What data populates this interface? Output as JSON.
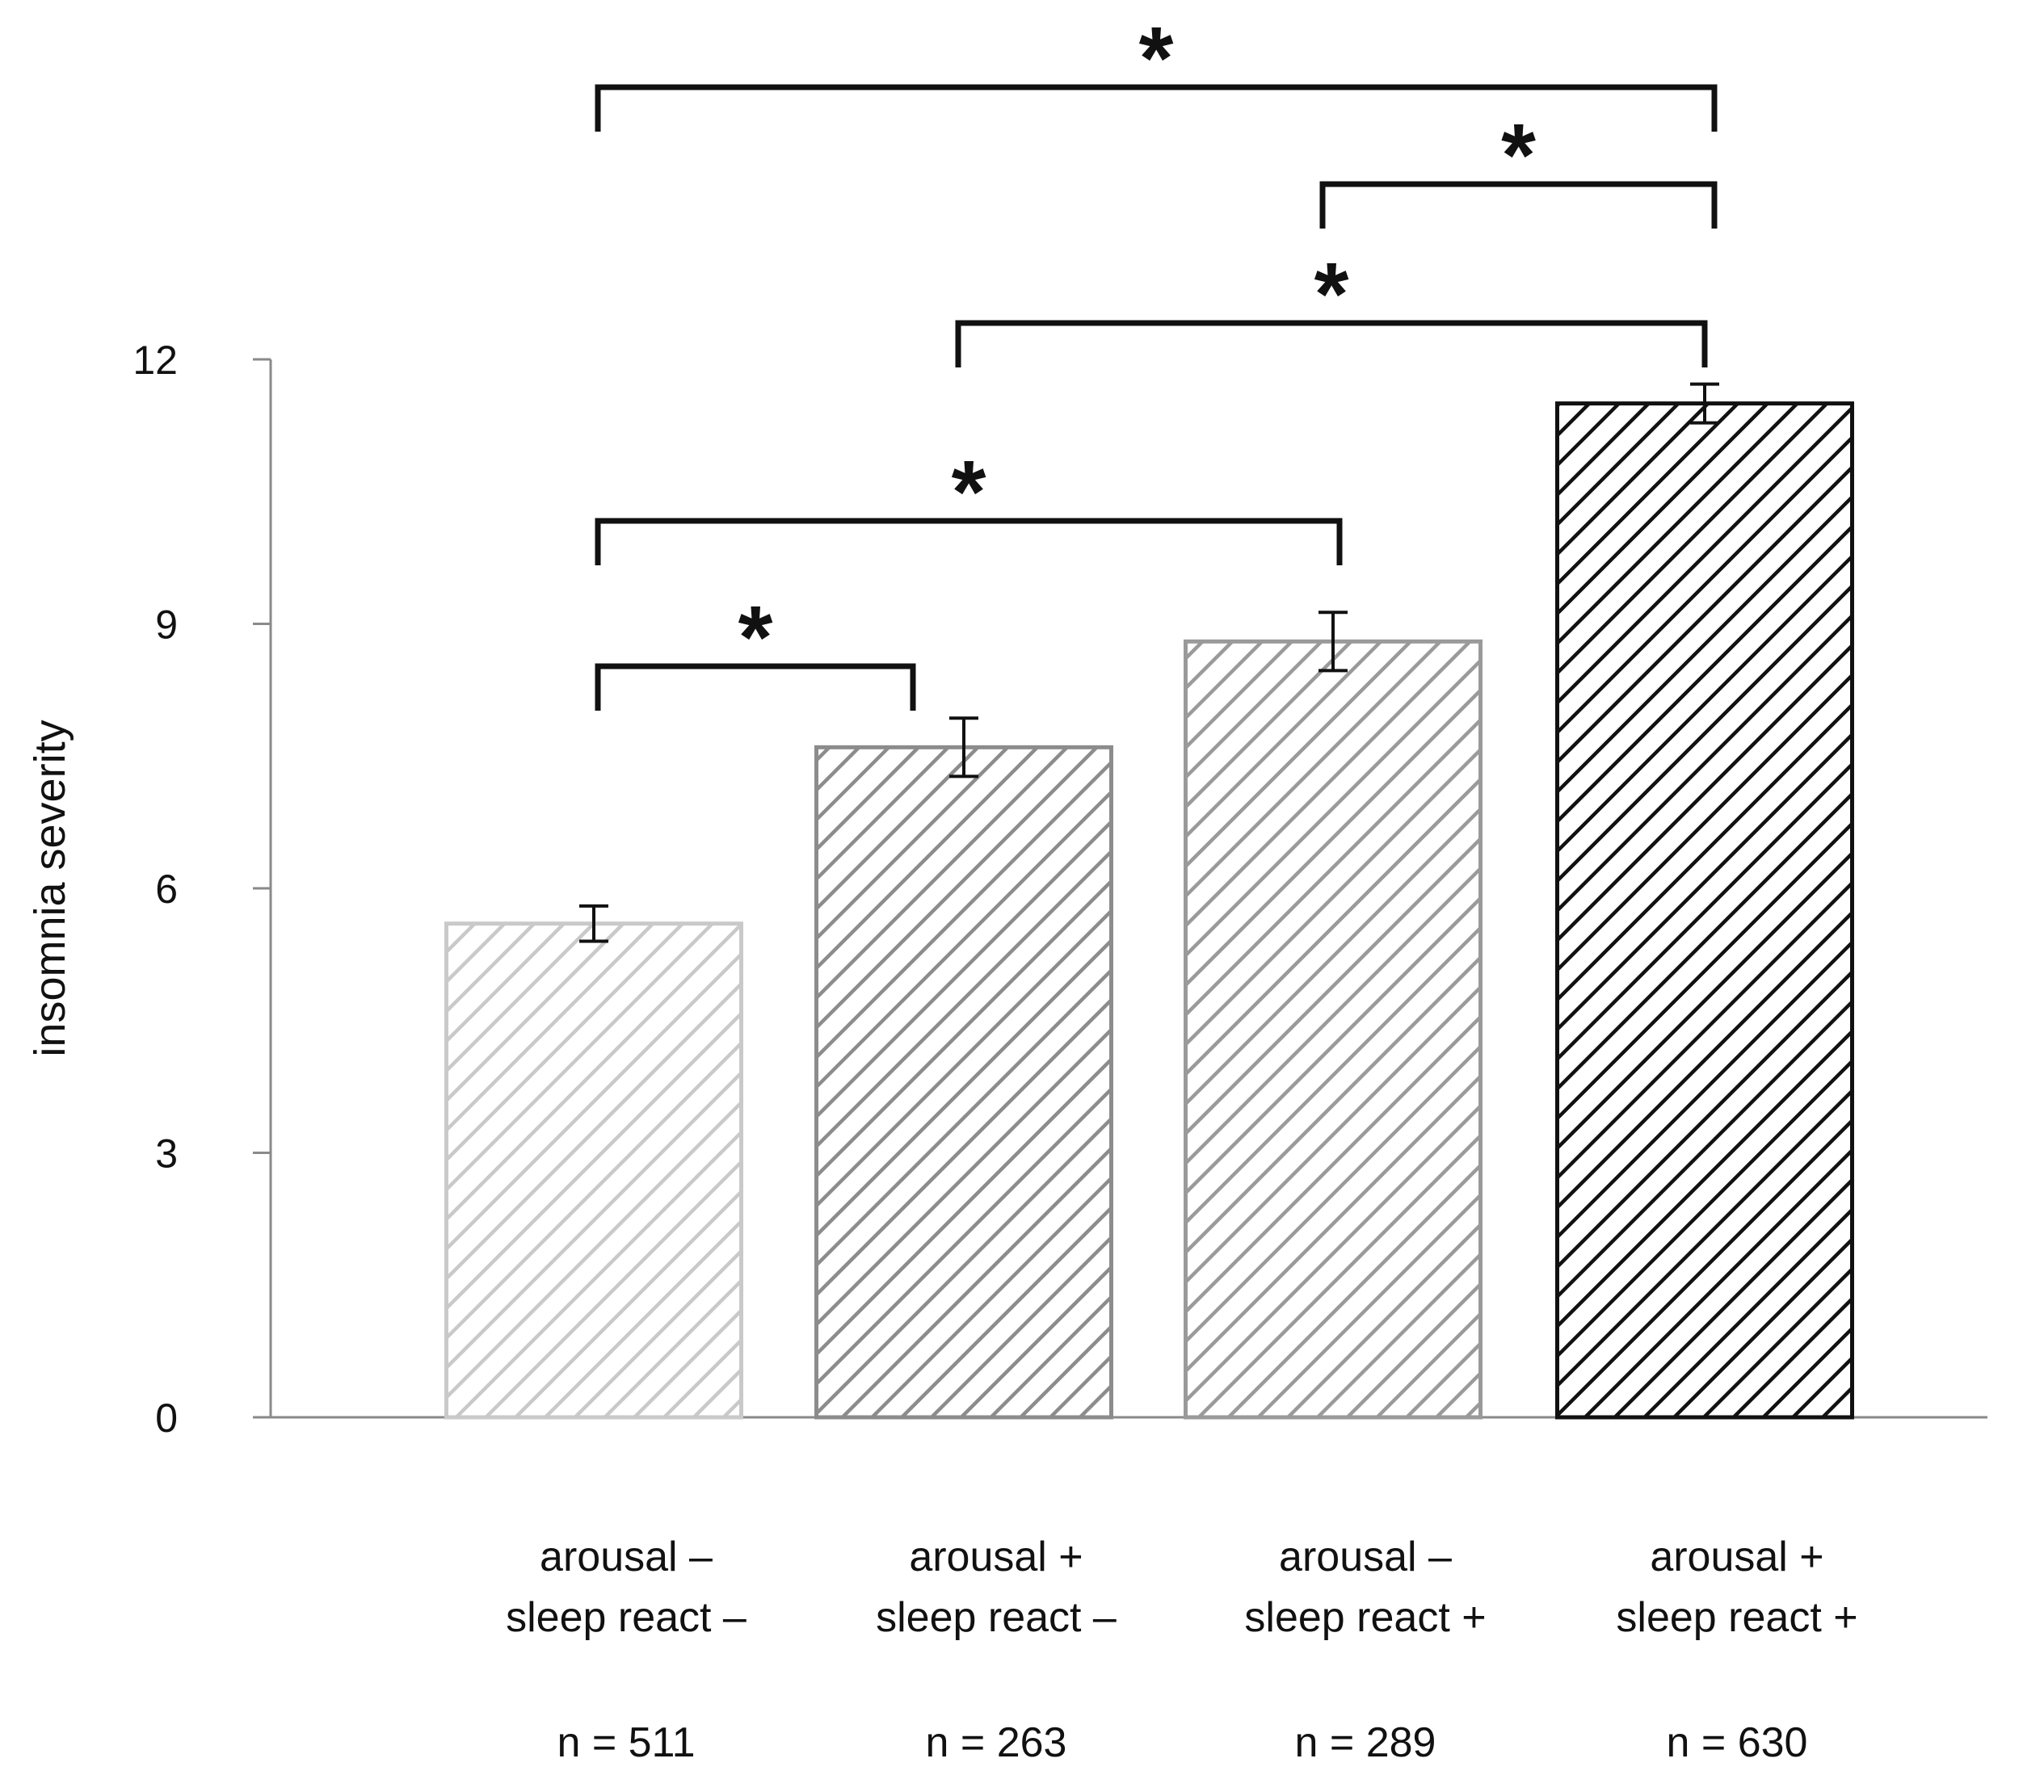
{
  "chart_data": {
    "type": "bar",
    "title": "",
    "xlabel": "",
    "ylabel": "insomnia severity",
    "ylim": [
      0,
      12
    ],
    "yticks": [
      "0",
      "3",
      "6",
      "9",
      "12"
    ],
    "grid": false,
    "categories": [
      {
        "line1": "arousal –",
        "line2": "sleep react –",
        "n": "n = 511"
      },
      {
        "line1": "arousal +",
        "line2": "sleep react –",
        "n": "n = 263"
      },
      {
        "line1": "arousal –",
        "line2": "sleep react +",
        "n": "n = 289"
      },
      {
        "line1": "arousal +",
        "line2": "sleep react +",
        "n": "n = 630"
      }
    ],
    "values": [
      5.6,
      7.6,
      8.8,
      11.5
    ],
    "errors": [
      0.2,
      0.33,
      0.33,
      0.22
    ],
    "bar_colors": [
      "#c9c9c9",
      "#8c8c8c",
      "#9a9a9a",
      "#111111"
    ],
    "significance": [
      {
        "from": 0,
        "to": 1,
        "label": "*"
      },
      {
        "from": 0,
        "to": 2,
        "label": "*"
      },
      {
        "from": 1,
        "to": 3,
        "label": "*"
      },
      {
        "from": 2,
        "to": 3,
        "label": "*"
      },
      {
        "from": 0,
        "to": 3,
        "label": "*"
      }
    ]
  }
}
